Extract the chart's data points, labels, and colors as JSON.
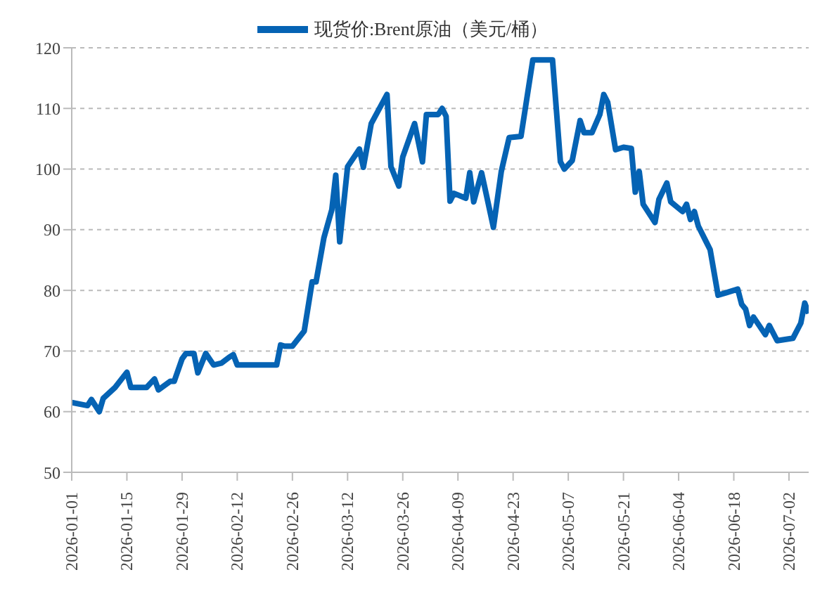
{
  "chart_data": {
    "type": "line",
    "legend": "top",
    "grid": "y",
    "marker": "none",
    "line_style": "solid",
    "ylim": [
      50,
      120
    ],
    "yticks": [
      50,
      60,
      70,
      80,
      90,
      100,
      110,
      120
    ],
    "xlim": [
      "2026-01-01",
      "2026-07-07"
    ],
    "xticks": [
      "2026-01-01",
      "2026-01-15",
      "2026-01-29",
      "2026-02-12",
      "2026-02-26",
      "2026-03-12",
      "2026-03-26",
      "2026-04-09",
      "2026-04-23",
      "2026-05-07",
      "2026-05-21",
      "2026-06-04",
      "2026-06-18",
      "2026-07-02"
    ],
    "x": [
      "2026-01-01",
      "2026-01-05",
      "2026-01-06",
      "2026-01-08",
      "2026-01-09",
      "2026-01-12",
      "2026-01-15",
      "2026-01-16",
      "2026-01-20",
      "2026-01-22",
      "2026-01-23",
      "2026-01-26",
      "2026-01-27",
      "2026-01-29",
      "2026-01-30",
      "2026-02-01",
      "2026-02-02",
      "2026-02-04",
      "2026-02-06",
      "2026-02-08",
      "2026-02-10",
      "2026-02-11",
      "2026-02-12",
      "2026-02-22",
      "2026-02-23",
      "2026-02-24",
      "2026-02-26",
      "2026-03-01",
      "2026-03-03",
      "2026-03-04",
      "2026-03-06",
      "2026-03-08",
      "2026-03-09",
      "2026-03-10",
      "2026-03-12",
      "2026-03-15",
      "2026-03-16",
      "2026-03-18",
      "2026-03-22",
      "2026-03-23",
      "2026-03-25",
      "2026-03-26",
      "2026-03-29",
      "2026-03-31",
      "2026-04-01",
      "2026-04-04",
      "2026-04-05",
      "2026-04-06",
      "2026-04-07",
      "2026-04-08",
      "2026-04-11",
      "2026-04-12",
      "2026-04-13",
      "2026-04-15",
      "2026-04-18",
      "2026-04-20",
      "2026-04-22",
      "2026-04-25",
      "2026-04-26",
      "2026-04-28",
      "2026-05-03",
      "2026-05-04",
      "2026-05-05",
      "2026-05-06",
      "2026-05-08",
      "2026-05-10",
      "2026-05-11",
      "2026-05-13",
      "2026-05-15",
      "2026-05-16",
      "2026-05-17",
      "2026-05-19",
      "2026-05-21",
      "2026-05-23",
      "2026-05-24",
      "2026-05-25",
      "2026-05-26",
      "2026-05-29",
      "2026-05-30",
      "2026-06-01",
      "2026-06-02",
      "2026-06-05",
      "2026-06-06",
      "2026-06-07",
      "2026-06-08",
      "2026-06-09",
      "2026-06-11",
      "2026-06-12",
      "2026-06-14",
      "2026-06-16",
      "2026-06-19",
      "2026-06-20",
      "2026-06-21",
      "2026-06-22",
      "2026-06-23",
      "2026-06-26",
      "2026-06-27",
      "2026-06-29",
      "2026-07-03",
      "2026-07-05",
      "2026-07-06",
      "2026-07-07"
    ],
    "series": [
      {
        "name": "现货价:Brent原油（美元/桶）",
        "color": "#0563b4",
        "values": [
          61.5,
          61,
          62,
          60,
          62.2,
          64,
          66.5,
          64,
          64,
          65.4,
          63.6,
          65,
          65,
          68.7,
          69.6,
          69.6,
          66.4,
          69.6,
          67.7,
          68,
          69,
          69.4,
          67.7,
          67.7,
          71,
          70.8,
          70.8,
          73.3,
          81.4,
          81.4,
          88.7,
          93.3,
          99,
          88,
          100.4,
          103.3,
          100.3,
          107.5,
          112.3,
          100.4,
          97.2,
          102,
          107.5,
          101.2,
          109,
          109,
          110,
          108.7,
          94.7,
          96,
          95.2,
          99.4,
          94.6,
          99.4,
          90.4,
          99.6,
          105.2,
          105.4,
          109.6,
          118,
          118,
          109.6,
          101.2,
          100,
          101.4,
          108,
          106,
          106,
          109,
          112.3,
          111,
          103.2,
          103.6,
          103.4,
          96.2,
          99.6,
          94.2,
          91.2,
          95,
          97.7,
          94.6,
          93,
          94.2,
          91.7,
          93,
          90.6,
          88,
          86.7,
          79.2,
          79.6,
          80.2,
          77.7,
          76.9,
          74.2,
          75.6,
          72.7,
          74.2,
          71.7,
          72.1,
          74.6,
          77.9,
          76.2
        ]
      }
    ]
  }
}
